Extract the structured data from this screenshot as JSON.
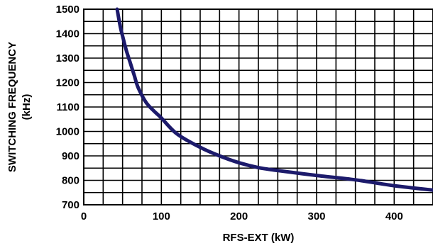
{
  "chart_data": {
    "type": "line",
    "title": "",
    "xlabel": "RFS-EXT (kW)",
    "ylabel_line1": "SWITCHING FREQUENCY",
    "ylabel_line2": "(kHz)",
    "xlim": [
      0,
      450
    ],
    "ylim": [
      700,
      1500
    ],
    "xticks": [
      0,
      100,
      200,
      300,
      400
    ],
    "yticks": [
      700,
      800,
      900,
      1000,
      1100,
      1200,
      1300,
      1400,
      1500
    ],
    "grid": true,
    "line_color": "#1c1a6b",
    "series": [
      {
        "x": [
          43,
          47,
          50,
          55,
          60,
          65,
          70,
          80,
          90,
          100,
          120,
          150,
          175,
          200,
          225,
          250,
          300,
          350,
          400,
          450
        ],
        "y": [
          1500,
          1430,
          1390,
          1330,
          1280,
          1230,
          1180,
          1120,
          1085,
          1055,
          990,
          935,
          900,
          872,
          852,
          840,
          820,
          802,
          778,
          760
        ]
      }
    ]
  }
}
